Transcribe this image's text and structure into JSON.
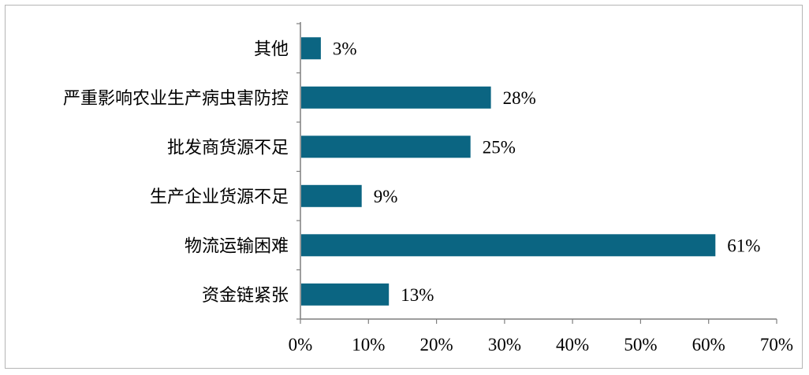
{
  "chart_data": {
    "type": "bar",
    "orientation": "horizontal",
    "categories": [
      "其他",
      "严重影响农业生产病虫害防控",
      "批发商货源不足",
      "生产企业货源不足",
      "物流运输困难",
      "资金链紧张"
    ],
    "values": [
      3,
      28,
      25,
      9,
      61,
      13
    ],
    "value_labels": [
      "3%",
      "28%",
      "25%",
      "9%",
      "61%",
      "13%"
    ],
    "x_ticks": [
      0,
      10,
      20,
      30,
      40,
      50,
      60,
      70
    ],
    "x_tick_labels": [
      "0%",
      "10%",
      "20%",
      "30%",
      "40%",
      "50%",
      "60%",
      "70%"
    ],
    "xlim": [
      0,
      70
    ],
    "grid": false,
    "legend": "none",
    "bar_color": "#0b6582",
    "title": "",
    "xlabel": "",
    "ylabel": ""
  }
}
